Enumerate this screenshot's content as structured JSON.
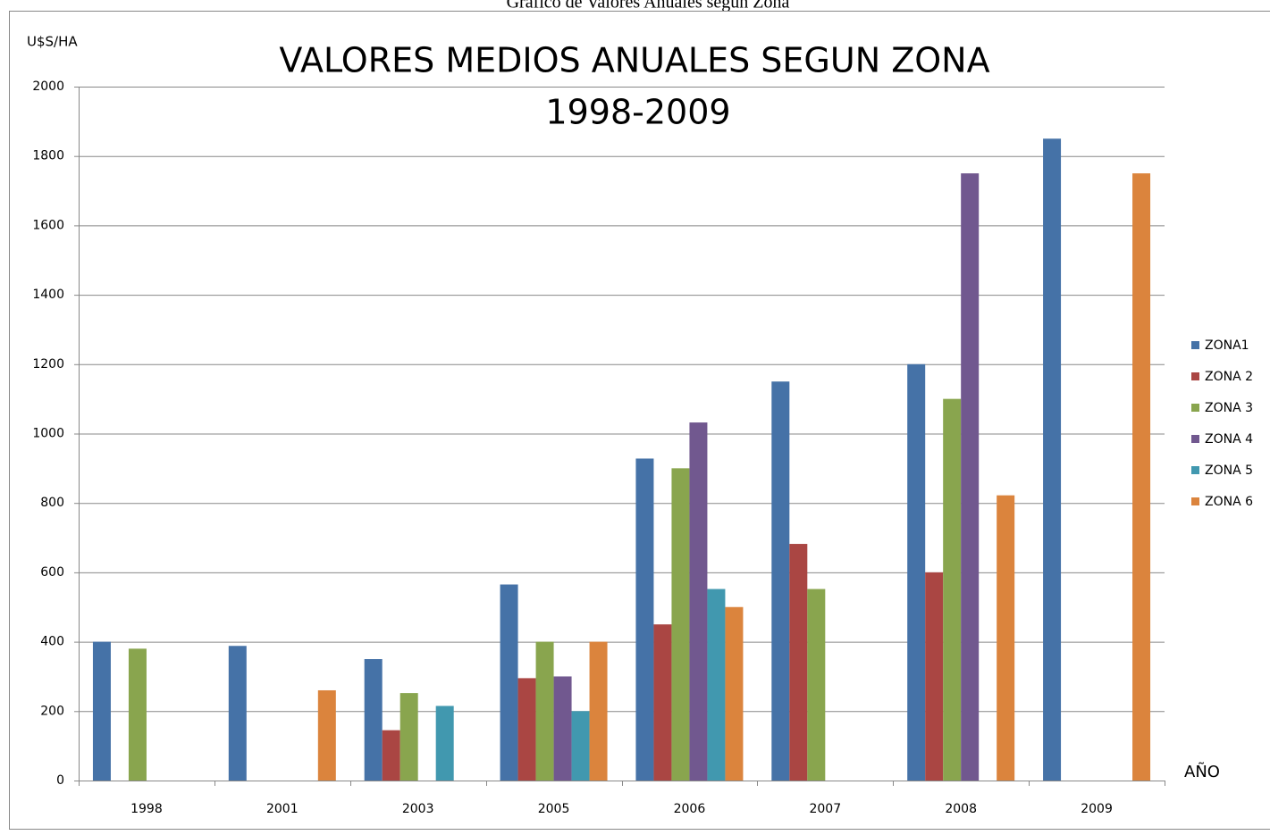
{
  "caption": "Gráfico de Valores Anuales según Zona",
  "chart_data": {
    "type": "bar",
    "title": "VALORES MEDIOS ANUALES SEGUN ZONA",
    "subtitle": "1998-2009",
    "y_label": "U$S/HA",
    "x_label": "AÑO",
    "categories": [
      "1998",
      "2001",
      "2003",
      "2005",
      "2006",
      "2007",
      "2008",
      "2009"
    ],
    "series": [
      {
        "name": "ZONA1",
        "color": "#4572a7",
        "values": [
          400,
          388,
          350,
          565,
          928,
          1150,
          1200,
          1850
        ]
      },
      {
        "name": "ZONA 2",
        "color": "#aa4643",
        "values": [
          null,
          null,
          145,
          295,
          450,
          682,
          600,
          null
        ]
      },
      {
        "name": "ZONA 3",
        "color": "#89a54e",
        "values": [
          380,
          null,
          252,
          400,
          900,
          552,
          1100,
          null
        ]
      },
      {
        "name": "ZONA 4",
        "color": "#71588f",
        "values": [
          null,
          null,
          null,
          300,
          1032,
          null,
          1750,
          null
        ]
      },
      {
        "name": "ZONA 5",
        "color": "#4198af",
        "values": [
          null,
          null,
          215,
          200,
          552,
          null,
          null,
          null
        ]
      },
      {
        "name": "ZONA 6",
        "color": "#db843d",
        "values": [
          null,
          260,
          null,
          400,
          500,
          null,
          822,
          1750
        ]
      }
    ],
    "ylim": [
      0,
      2000
    ],
    "yticks": [
      0,
      200,
      400,
      600,
      800,
      1000,
      1200,
      1400,
      1600,
      1800,
      2000
    ],
    "grid": true,
    "legend": "right"
  }
}
